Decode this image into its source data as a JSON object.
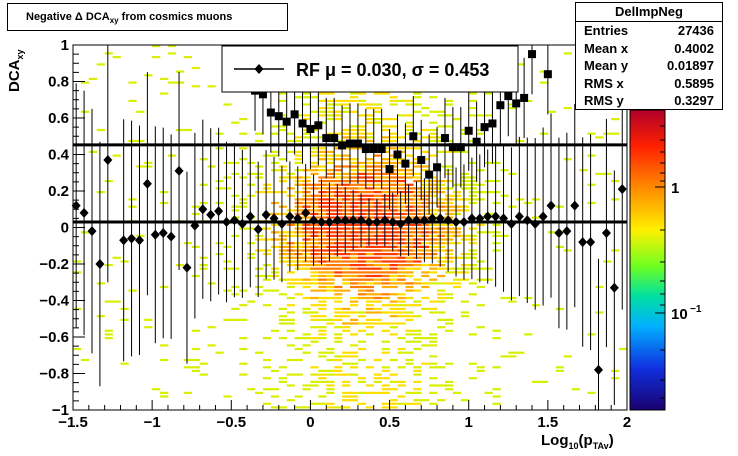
{
  "title": "Negative Δ DCA",
  "title_sub": "xy",
  "title_rest": "from cosmics muons",
  "stats_box": {
    "name": "DelImpNeg",
    "rows": [
      {
        "label": "Entries",
        "value": "27436"
      },
      {
        "label": "Mean x",
        "value": "0.4002"
      },
      {
        "label": "Mean y",
        "value": "0.01897"
      },
      {
        "label": "RMS x",
        "value": "0.5895"
      },
      {
        "label": "RMS y",
        "value": "0.3297"
      }
    ]
  },
  "colors": {
    "sigma_marker": "#000000",
    "mean_marker": "#000000",
    "line": "#000000"
  },
  "chart_data": {
    "type": "scatter",
    "xlabel_main": "Log",
    "xlabel_sub": "10",
    "xlabel_paren": "(p",
    "xlabel_sub2": "TAv",
    "xlabel_close": ")",
    "ylabel_main": "DCA",
    "ylabel_sub": "xy",
    "xlim": [
      -1.5,
      2.0
    ],
    "ylim": [
      -1.0,
      1.0
    ],
    "x_ticks": [
      -1.5,
      -1.0,
      -0.5,
      0,
      0.5,
      1.0,
      1.5,
      2.0
    ],
    "x_tick_labels": [
      "−1.5",
      "−1",
      "−0.5",
      "0",
      "0.5",
      "1",
      "1.5",
      "2"
    ],
    "y_ticks": [
      -1.0,
      -0.8,
      -0.6,
      -0.4,
      -0.2,
      0,
      0.2,
      0.4,
      0.6,
      0.8,
      1.0
    ],
    "y_tick_labels": [
      "−1",
      "−0.8",
      "−0.6",
      "−0.4",
      "−0.2",
      "0",
      "0.2",
      "0.4",
      "0.6",
      "0.8",
      "1"
    ],
    "colorbar": {
      "scale": "log",
      "tick_labels": [
        "1",
        "10"
      ],
      "tick_sup": [
        "",
        "−1"
      ]
    },
    "fit": {
      "legend_text": "RF μ =  0.030, σ =   0.453",
      "mean": 0.03,
      "sigma": 0.453
    },
    "series": [
      {
        "marker": "square",
        "x": [
          -0.35,
          -0.3,
          -0.25,
          -0.2,
          -0.15,
          -0.1,
          -0.05,
          0.0,
          0.05,
          0.1,
          0.15,
          0.2,
          0.25,
          0.3,
          0.35,
          0.4,
          0.45,
          0.5,
          0.55,
          0.6,
          0.65,
          0.7,
          0.75,
          0.8,
          0.85,
          0.9,
          0.95,
          1.0,
          1.05,
          1.1,
          1.15,
          1.2,
          1.25,
          1.3,
          1.35,
          1.4,
          1.5
        ],
        "y": [
          0.75,
          0.73,
          0.63,
          0.61,
          0.58,
          0.62,
          0.57,
          0.54,
          0.56,
          0.49,
          0.49,
          0.45,
          0.46,
          0.46,
          0.43,
          0.43,
          0.43,
          0.32,
          0.4,
          0.35,
          0.5,
          0.37,
          0.29,
          0.33,
          0.49,
          0.44,
          0.44,
          0.53,
          0.47,
          0.55,
          0.57,
          0.67,
          0.72,
          0.68,
          0.71,
          0.95,
          0.84
        ]
      },
      {
        "marker": "diamond",
        "x": [
          -1.48,
          -1.43,
          -1.38,
          -1.33,
          -1.28,
          -1.18,
          -1.13,
          -1.08,
          -1.03,
          -0.98,
          -0.93,
          -0.88,
          -0.83,
          -0.78,
          -0.73,
          -0.68,
          -0.63,
          -0.58,
          -0.53,
          -0.48,
          -0.43,
          -0.38,
          -0.33,
          -0.28,
          -0.23,
          -0.18,
          -0.13,
          -0.08,
          -0.03,
          0.02,
          0.07,
          0.12,
          0.17,
          0.22,
          0.27,
          0.32,
          0.37,
          0.42,
          0.47,
          0.52,
          0.57,
          0.62,
          0.67,
          0.72,
          0.77,
          0.82,
          0.87,
          0.92,
          0.97,
          1.02,
          1.07,
          1.12,
          1.17,
          1.22,
          1.27,
          1.32,
          1.37,
          1.42,
          1.47,
          1.52,
          1.57,
          1.62,
          1.67,
          1.72,
          1.77,
          1.82,
          1.87,
          1.92,
          1.97
        ],
        "y": [
          0.12,
          0.08,
          -0.02,
          -0.2,
          0.37,
          -0.07,
          -0.06,
          -0.07,
          0.24,
          -0.04,
          -0.03,
          -0.05,
          0.31,
          -0.22,
          0.01,
          0.1,
          0.07,
          0.09,
          0.03,
          0.04,
          0.02,
          0.06,
          -0.01,
          0.07,
          0.05,
          0.02,
          0.06,
          0.05,
          0.08,
          0.04,
          0.03,
          0.03,
          0.04,
          0.04,
          0.04,
          0.04,
          0.03,
          0.03,
          0.04,
          0.03,
          0.02,
          0.04,
          0.04,
          0.04,
          0.05,
          0.05,
          0.04,
          0.03,
          0.03,
          0.05,
          0.05,
          0.06,
          0.06,
          0.05,
          0.02,
          0.06,
          0.04,
          0.02,
          0.06,
          0.12,
          -0.03,
          -0.02,
          0.12,
          -0.08,
          -0.08,
          -0.78,
          -0.03,
          -0.33,
          0.21
        ]
      }
    ]
  }
}
